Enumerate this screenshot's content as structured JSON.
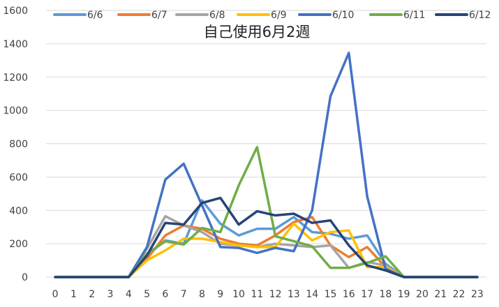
{
  "chart_data": {
    "type": "line",
    "title": "自己使用6月2週",
    "xlabel": "",
    "ylabel": "",
    "categories": [
      "0",
      "1",
      "2",
      "3",
      "4",
      "5",
      "6",
      "7",
      "8",
      "9",
      "10",
      "11",
      "12",
      "13",
      "14",
      "15",
      "16",
      "17",
      "18",
      "19",
      "20",
      "21",
      "22",
      "23"
    ],
    "ylim": [
      0,
      1600
    ],
    "yticks": [
      0,
      200,
      400,
      600,
      800,
      1000,
      1200,
      1400,
      1600
    ],
    "grid": true,
    "legend_position": "top",
    "series": [
      {
        "name": "6/6",
        "color": "#5B9BD5",
        "values": [
          0,
          0,
          0,
          0,
          0,
          130,
          220,
          200,
          460,
          320,
          250,
          290,
          290,
          360,
          270,
          260,
          230,
          250,
          80,
          0,
          0,
          0,
          0,
          0
        ]
      },
      {
        "name": "6/7",
        "color": "#ED7D31",
        "values": [
          0,
          0,
          0,
          0,
          0,
          110,
          250,
          310,
          290,
          230,
          200,
          190,
          250,
          330,
          360,
          190,
          120,
          180,
          60,
          0,
          0,
          0,
          0,
          0
        ]
      },
      {
        "name": "6/8",
        "color": "#A5A5A5",
        "values": [
          0,
          0,
          0,
          0,
          0,
          170,
          365,
          310,
          270,
          200,
          190,
          180,
          200,
          190,
          180,
          190,
          55,
          90,
          70,
          0,
          0,
          0,
          0,
          0
        ]
      },
      {
        "name": "6/9",
        "color": "#FFC000",
        "values": [
          0,
          0,
          0,
          0,
          0,
          100,
          160,
          230,
          230,
          210,
          190,
          180,
          180,
          320,
          220,
          270,
          280,
          60,
          60,
          0,
          0,
          0,
          0,
          0
        ]
      },
      {
        "name": "6/10",
        "color": "#4472C4",
        "values": [
          0,
          0,
          0,
          0,
          0,
          180,
          585,
          680,
          430,
          180,
          175,
          145,
          175,
          155,
          400,
          1085,
          1345,
          485,
          50,
          0,
          0,
          0,
          0,
          0
        ]
      },
      {
        "name": "6/11",
        "color": "#70AD47",
        "values": [
          0,
          0,
          0,
          0,
          0,
          140,
          215,
          195,
          295,
          270,
          550,
          780,
          245,
          215,
          185,
          55,
          55,
          85,
          125,
          0,
          0,
          0,
          0,
          0
        ]
      },
      {
        "name": "6/12",
        "color": "#264478",
        "values": [
          0,
          0,
          0,
          0,
          0,
          130,
          325,
          315,
          445,
          475,
          315,
          395,
          370,
          380,
          325,
          340,
          190,
          70,
          40,
          0,
          0,
          0,
          0,
          0
        ]
      }
    ]
  }
}
